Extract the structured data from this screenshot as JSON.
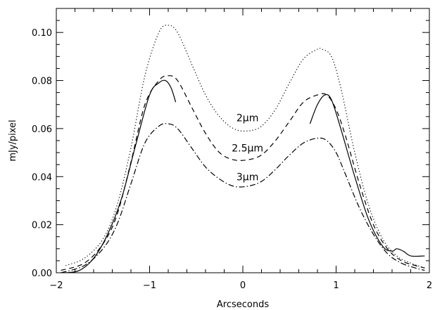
{
  "chart_data": {
    "type": "line",
    "title": "",
    "xlabel": "Arcseconds",
    "ylabel": "mJy/pixel",
    "xlim": [
      -2,
      2
    ],
    "ylim": [
      0,
      0.11
    ],
    "x_ticks": [
      -2,
      -1,
      0,
      1,
      2
    ],
    "x_tick_labels": [
      "−2",
      "−1",
      "0",
      "1",
      "2"
    ],
    "y_ticks": [
      0.0,
      0.02,
      0.04,
      0.06,
      0.08,
      0.1
    ],
    "y_tick_labels": [
      "0.00",
      "0.02",
      "0.04",
      "0.06",
      "0.08",
      "0.10"
    ],
    "grid": false,
    "annotations": [
      {
        "text": "2μm",
        "x": 0.05,
        "y": 0.063
      },
      {
        "text": "2.5μm",
        "x": 0.05,
        "y": 0.0505
      },
      {
        "text": "3μm",
        "x": 0.05,
        "y": 0.0385
      }
    ],
    "series": [
      {
        "line_style": "dotted",
        "x": [
          -1.9,
          -1.7,
          -1.5,
          -1.35,
          -1.2,
          -1.05,
          -0.9,
          -0.8,
          -0.7,
          -0.55,
          -0.4,
          -0.25,
          -0.1,
          0.05,
          0.2,
          0.35,
          0.5,
          0.65,
          0.8,
          0.85,
          0.95,
          1.05,
          1.2,
          1.35,
          1.5,
          1.65,
          1.8,
          1.95
        ],
        "y": [
          0.003,
          0.006,
          0.014,
          0.028,
          0.052,
          0.082,
          0.1,
          0.103,
          0.1,
          0.087,
          0.074,
          0.065,
          0.06,
          0.059,
          0.061,
          0.068,
          0.079,
          0.089,
          0.093,
          0.093,
          0.09,
          0.077,
          0.05,
          0.028,
          0.014,
          0.007,
          0.004,
          0.002
        ]
      },
      {
        "line_style": "dashed",
        "x": [
          -1.95,
          -1.7,
          -1.5,
          -1.35,
          -1.2,
          -1.05,
          -0.9,
          -0.8,
          -0.7,
          -0.55,
          -0.4,
          -0.25,
          -0.1,
          0.05,
          0.2,
          0.35,
          0.5,
          0.65,
          0.8,
          0.9,
          1.0,
          1.1,
          1.25,
          1.4,
          1.55,
          1.7,
          1.85,
          1.95
        ],
        "y": [
          0.001,
          0.004,
          0.012,
          0.024,
          0.046,
          0.07,
          0.08,
          0.082,
          0.08,
          0.069,
          0.058,
          0.05,
          0.047,
          0.047,
          0.049,
          0.055,
          0.063,
          0.071,
          0.074,
          0.074,
          0.068,
          0.057,
          0.037,
          0.02,
          0.01,
          0.005,
          0.003,
          0.002
        ]
      },
      {
        "line_style": "dashdot",
        "x": [
          -1.95,
          -1.7,
          -1.5,
          -1.35,
          -1.2,
          -1.05,
          -0.9,
          -0.8,
          -0.7,
          -0.55,
          -0.4,
          -0.25,
          -0.1,
          0.05,
          0.2,
          0.35,
          0.5,
          0.65,
          0.8,
          0.9,
          1.0,
          1.1,
          1.25,
          1.4,
          1.55,
          1.7,
          1.85,
          1.95
        ],
        "y": [
          0.0,
          0.003,
          0.01,
          0.02,
          0.037,
          0.054,
          0.061,
          0.062,
          0.06,
          0.052,
          0.044,
          0.039,
          0.036,
          0.036,
          0.038,
          0.043,
          0.049,
          0.054,
          0.056,
          0.055,
          0.05,
          0.041,
          0.027,
          0.016,
          0.008,
          0.004,
          0.002,
          0.001
        ]
      },
      {
        "line_style": "solid",
        "x": [
          -1.9,
          -1.75,
          -1.6,
          -1.45,
          -1.3,
          -1.15,
          -1.0,
          -0.9,
          -0.83,
          -0.77,
          -0.72
        ],
        "y": [
          0.0,
          0.001,
          0.006,
          0.016,
          0.031,
          0.053,
          0.074,
          0.079,
          0.08,
          0.077,
          0.071
        ]
      },
      {
        "line_style": "solid",
        "x": [
          0.72,
          0.8,
          0.88,
          0.95,
          1.05,
          1.2,
          1.35,
          1.5,
          1.6,
          1.65,
          1.72,
          1.8,
          1.95
        ],
        "y": [
          0.062,
          0.07,
          0.074,
          0.072,
          0.06,
          0.04,
          0.022,
          0.011,
          0.009,
          0.01,
          0.009,
          0.007,
          0.007
        ]
      }
    ]
  }
}
